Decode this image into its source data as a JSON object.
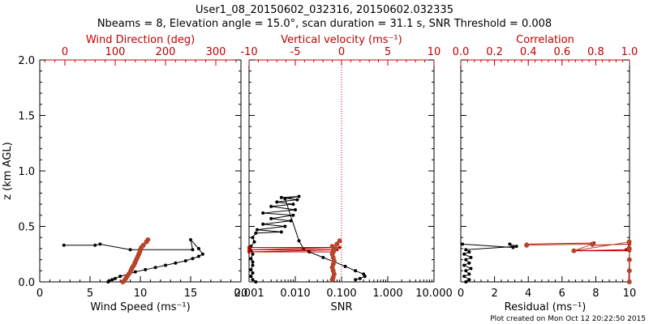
{
  "title_line1": "User1_08_20150602_032316, 20150602.032335",
  "title_line2": "Nbeams = 8, Elevation angle = 15.0°, scan duration = 31.1 s, SNR Threshold = 0.008",
  "footer": "Plot created on Mon Oct 12 20:22:50 2015",
  "colors": {
    "black": "#000000",
    "red": "#c00000",
    "brown": "#b5452a"
  },
  "chart_data": [
    {
      "type": "scatter",
      "name": "wind-profile",
      "xlabel_bottom": "Wind Speed (ms⁻¹)",
      "xlabel_top": "Wind Direction (deg)",
      "ylabel": "z (km AGL)",
      "x_bottom_range": [
        0,
        20
      ],
      "x_bottom_ticks": [
        "0",
        "5",
        "10",
        "15",
        "20"
      ],
      "x_top_range": [
        -50,
        350
      ],
      "x_top_ticks": [
        "0",
        "100",
        "200",
        "300"
      ],
      "ylim": [
        0,
        2
      ],
      "y_ticks": [
        "0.0",
        "0.5",
        "1.0",
        "1.5",
        "2.0"
      ],
      "series": [
        {
          "axis": "bottom",
          "color": "black",
          "points": [
            [
              2.4,
              0.33
            ],
            [
              5.5,
              0.33
            ],
            [
              6.0,
              0.34
            ],
            [
              9.0,
              0.29
            ],
            [
              15.2,
              0.29
            ],
            [
              15.0,
              0.38
            ],
            [
              15.8,
              0.3
            ],
            [
              16.2,
              0.25
            ],
            [
              15.8,
              0.23
            ],
            [
              15.2,
              0.21
            ],
            [
              14.5,
              0.19
            ],
            [
              13.5,
              0.17
            ],
            [
              12.5,
              0.15
            ],
            [
              11.5,
              0.13
            ],
            [
              10.5,
              0.11
            ],
            [
              9.5,
              0.09
            ],
            [
              8.8,
              0.07
            ],
            [
              8.0,
              0.05
            ],
            [
              7.5,
              0.03
            ],
            [
              7.2,
              0.02
            ],
            [
              6.9,
              0.01
            ],
            [
              6.8,
              0.0
            ]
          ]
        },
        {
          "axis": "top",
          "color": "brown",
          "points": [
            [
              165,
              0.38
            ],
            [
              162,
              0.36
            ],
            [
              156,
              0.33
            ],
            [
              152,
              0.31
            ],
            [
              150,
              0.29
            ],
            [
              149,
              0.27
            ],
            [
              147,
              0.25
            ],
            [
              145,
              0.23
            ],
            [
              143,
              0.21
            ],
            [
              141,
              0.19
            ],
            [
              139,
              0.17
            ],
            [
              137,
              0.15
            ],
            [
              134,
              0.13
            ],
            [
              132,
              0.11
            ],
            [
              130,
              0.09
            ],
            [
              127,
              0.07
            ],
            [
              124,
              0.05
            ],
            [
              121,
              0.03
            ],
            [
              118,
              0.01
            ],
            [
              115,
              0.0
            ]
          ]
        }
      ]
    },
    {
      "type": "scatter",
      "name": "snr-velocity",
      "xlabel_bottom": "SNR",
      "xlabel_top": "Vertical velocity (ms⁻¹)",
      "x_bottom_range": [
        0.001,
        10
      ],
      "x_bottom_scale": "log",
      "x_bottom_ticks": [
        "0.001",
        "0.010",
        "0.100",
        "1.000",
        "10.000"
      ],
      "x_top_range": [
        -10,
        10
      ],
      "x_top_ticks": [
        "-10",
        "-5",
        "0",
        "5",
        "10"
      ],
      "ylim": [
        0,
        2
      ],
      "series": [
        {
          "axis": "bottom",
          "color": "black",
          "points": [
            [
              0.0014,
              0.0
            ],
            [
              0.0012,
              0.02
            ],
            [
              0.0011,
              0.05
            ],
            [
              0.0012,
              0.08
            ],
            [
              0.0011,
              0.11
            ],
            [
              0.0012,
              0.15
            ],
            [
              0.0012,
              0.18
            ],
            [
              0.0011,
              0.21
            ],
            [
              0.0012,
              0.25
            ],
            [
              0.0011,
              0.28
            ],
            [
              0.0011,
              0.32
            ],
            [
              0.0013,
              0.36
            ],
            [
              0.0012,
              0.4
            ],
            [
              0.0014,
              0.44
            ],
            [
              0.005,
              0.45
            ],
            [
              0.0015,
              0.47
            ],
            [
              0.006,
              0.5
            ],
            [
              0.002,
              0.52
            ],
            [
              0.008,
              0.55
            ],
            [
              0.003,
              0.57
            ],
            [
              0.009,
              0.6
            ],
            [
              0.002,
              0.62
            ],
            [
              0.01,
              0.65
            ],
            [
              0.003,
              0.68
            ],
            [
              0.009,
              0.7
            ],
            [
              0.004,
              0.72
            ],
            [
              0.011,
              0.74
            ],
            [
              0.005,
              0.76
            ],
            [
              0.012,
              0.77
            ],
            [
              0.006,
              0.75
            ],
            [
              0.012,
              0.37
            ],
            [
              0.015,
              0.3
            ],
            [
              0.02,
              0.27
            ],
            [
              0.04,
              0.22
            ],
            [
              0.07,
              0.18
            ],
            [
              0.12,
              0.14
            ],
            [
              0.2,
              0.1
            ],
            [
              0.3,
              0.07
            ],
            [
              0.32,
              0.05
            ],
            [
              0.25,
              0.03
            ],
            [
              0.2,
              0.02
            ]
          ]
        },
        {
          "axis": "top",
          "color": "red",
          "points": [
            [
              -10,
              0.31
            ],
            [
              -0.2,
              0.31
            ],
            [
              -10,
              0.29
            ],
            [
              -0.5,
              0.29
            ],
            [
              -10,
              0.27
            ],
            [
              -0.8,
              0.27
            ]
          ]
        },
        {
          "axis": "top",
          "color": "brown",
          "points": [
            [
              -0.2,
              0.37
            ],
            [
              -0.5,
              0.34
            ],
            [
              -1.0,
              0.32
            ],
            [
              -0.7,
              0.3
            ],
            [
              -0.9,
              0.28
            ],
            [
              -1.0,
              0.25
            ],
            [
              -0.9,
              0.22
            ],
            [
              -0.8,
              0.19
            ],
            [
              -0.9,
              0.16
            ],
            [
              -1.0,
              0.13
            ],
            [
              -0.9,
              0.1
            ],
            [
              -0.8,
              0.07
            ],
            [
              -0.9,
              0.04
            ],
            [
              -1.0,
              0.02
            ]
          ]
        }
      ],
      "reference_line": {
        "axis": "top",
        "x": 0,
        "style": "dotted",
        "color": "red"
      }
    },
    {
      "type": "scatter",
      "name": "residual-correlation",
      "xlabel_bottom": "Residual (ms⁻¹)",
      "xlabel_top": "Correlation",
      "x_bottom_range": [
        0,
        10
      ],
      "x_bottom_ticks": [
        "0",
        "2",
        "4",
        "6",
        "8",
        "10"
      ],
      "x_top_range": [
        0,
        1
      ],
      "x_top_ticks": [
        "0.0",
        "0.2",
        "0.4",
        "0.6",
        "0.8",
        "1.0"
      ],
      "ylim": [
        0,
        2
      ],
      "series": [
        {
          "axis": "bottom",
          "color": "black",
          "points": [
            [
              0.1,
              0.34
            ],
            [
              3.1,
              0.31
            ],
            [
              2.9,
              0.34
            ],
            [
              3.3,
              0.32
            ],
            [
              0.3,
              0.29
            ],
            [
              0.5,
              0.27
            ],
            [
              0.2,
              0.25
            ],
            [
              0.6,
              0.22
            ],
            [
              0.3,
              0.2
            ],
            [
              0.5,
              0.17
            ],
            [
              0.2,
              0.15
            ],
            [
              0.6,
              0.12
            ],
            [
              0.3,
              0.1
            ],
            [
              0.5,
              0.07
            ],
            [
              0.2,
              0.05
            ],
            [
              0.5,
              0.02
            ],
            [
              0.3,
              0.0
            ]
          ]
        },
        {
          "axis": "top",
          "color": "red",
          "points": [
            [
              0.39,
              0.34
            ],
            [
              0.79,
              0.35
            ],
            [
              0.78,
              0.33
            ],
            [
              1.0,
              0.34
            ],
            [
              0.98,
              0.29
            ],
            [
              0.67,
              0.28
            ],
            [
              1.0,
              0.28
            ],
            [
              0.995,
              0.0
            ]
          ]
        },
        {
          "axis": "top",
          "color": "brown",
          "points": [
            [
              0.39,
              0.33
            ],
            [
              0.78,
              0.34
            ],
            [
              0.67,
              0.28
            ],
            [
              0.998,
              0.36
            ],
            [
              0.999,
              0.3
            ],
            [
              0.999,
              0.2
            ],
            [
              0.999,
              0.1
            ],
            [
              0.999,
              0.0
            ]
          ]
        }
      ]
    }
  ]
}
